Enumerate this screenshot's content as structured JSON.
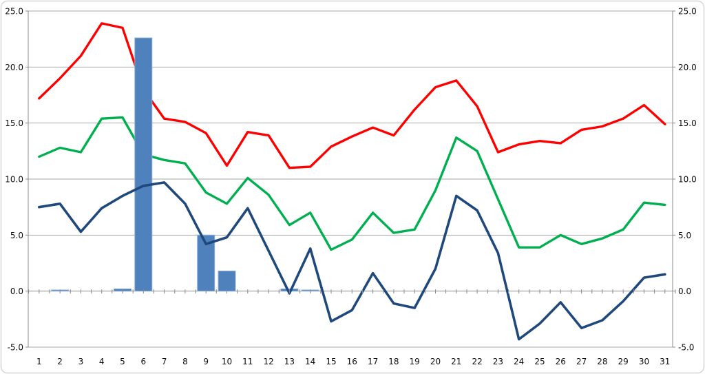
{
  "chart_data": {
    "type": "combo",
    "title": null,
    "legend": null,
    "grid": true,
    "categories": [
      "1",
      "2",
      "3",
      "4",
      "5",
      "6",
      "7",
      "8",
      "9",
      "10",
      "11",
      "12",
      "13",
      "14",
      "15",
      "16",
      "17",
      "18",
      "19",
      "20",
      "21",
      "22",
      "23",
      "24",
      "25",
      "26",
      "27",
      "28",
      "29",
      "30",
      "31"
    ],
    "y_axis": {
      "min": -5.0,
      "max": 25.0,
      "step": 5.0,
      "tick_labels": [
        "25.0",
        "20.0",
        "15.0",
        "10.0",
        "5.0",
        "0.0",
        "-5.0"
      ],
      "sides": [
        "left",
        "right"
      ]
    },
    "series": [
      {
        "name": "bars",
        "type": "bar",
        "color": "#4F81BD",
        "edge_color": "#8FAFD4",
        "values": [
          0,
          0.1,
          0,
          0,
          0.2,
          22.6,
          0,
          0,
          5.0,
          1.8,
          0,
          0,
          0.2,
          0.1,
          0,
          0,
          0,
          0,
          0,
          0,
          0,
          0,
          0,
          0,
          0,
          0,
          0,
          0,
          0,
          0,
          0
        ]
      },
      {
        "name": "red-line",
        "type": "line",
        "color": "#FF0000",
        "values": [
          17.2,
          19.0,
          21.0,
          23.9,
          23.5,
          18.0,
          15.4,
          15.1,
          14.1,
          11.2,
          14.2,
          13.9,
          11.0,
          11.1,
          12.9,
          13.8,
          14.6,
          13.9,
          16.2,
          18.2,
          18.8,
          16.5,
          12.4,
          13.1,
          13.4,
          13.2,
          14.4,
          14.7,
          15.4,
          16.6,
          14.9
        ]
      },
      {
        "name": "green-line",
        "type": "line",
        "color": "#00B050",
        "values": [
          12.0,
          12.8,
          12.4,
          15.4,
          15.5,
          12.2,
          11.7,
          11.4,
          8.8,
          7.8,
          10.1,
          8.6,
          5.9,
          7.0,
          3.7,
          4.6,
          7.0,
          5.2,
          5.5,
          9.0,
          13.7,
          12.5,
          8.2,
          3.9,
          3.9,
          5.0,
          4.2,
          4.7,
          5.5,
          7.9,
          7.7
        ]
      },
      {
        "name": "dark-blue-line",
        "type": "line",
        "color": "#1F497D",
        "values": [
          7.5,
          7.8,
          5.3,
          7.4,
          8.5,
          9.4,
          9.7,
          7.8,
          4.2,
          4.8,
          7.4,
          3.6,
          -0.2,
          3.8,
          -2.7,
          -1.7,
          1.6,
          -1.1,
          -1.5,
          2.0,
          8.5,
          7.2,
          3.4,
          -4.3,
          -2.9,
          -1.0,
          -3.3,
          -2.6,
          -0.9,
          1.2,
          1.5
        ]
      }
    ],
    "colors": {
      "background": "#FFFFFF",
      "frame_border": "#D5D5D5",
      "gridline": "#A6A6A6",
      "axis_line": "#898989",
      "tick_label": "#0D0D0D"
    }
  }
}
